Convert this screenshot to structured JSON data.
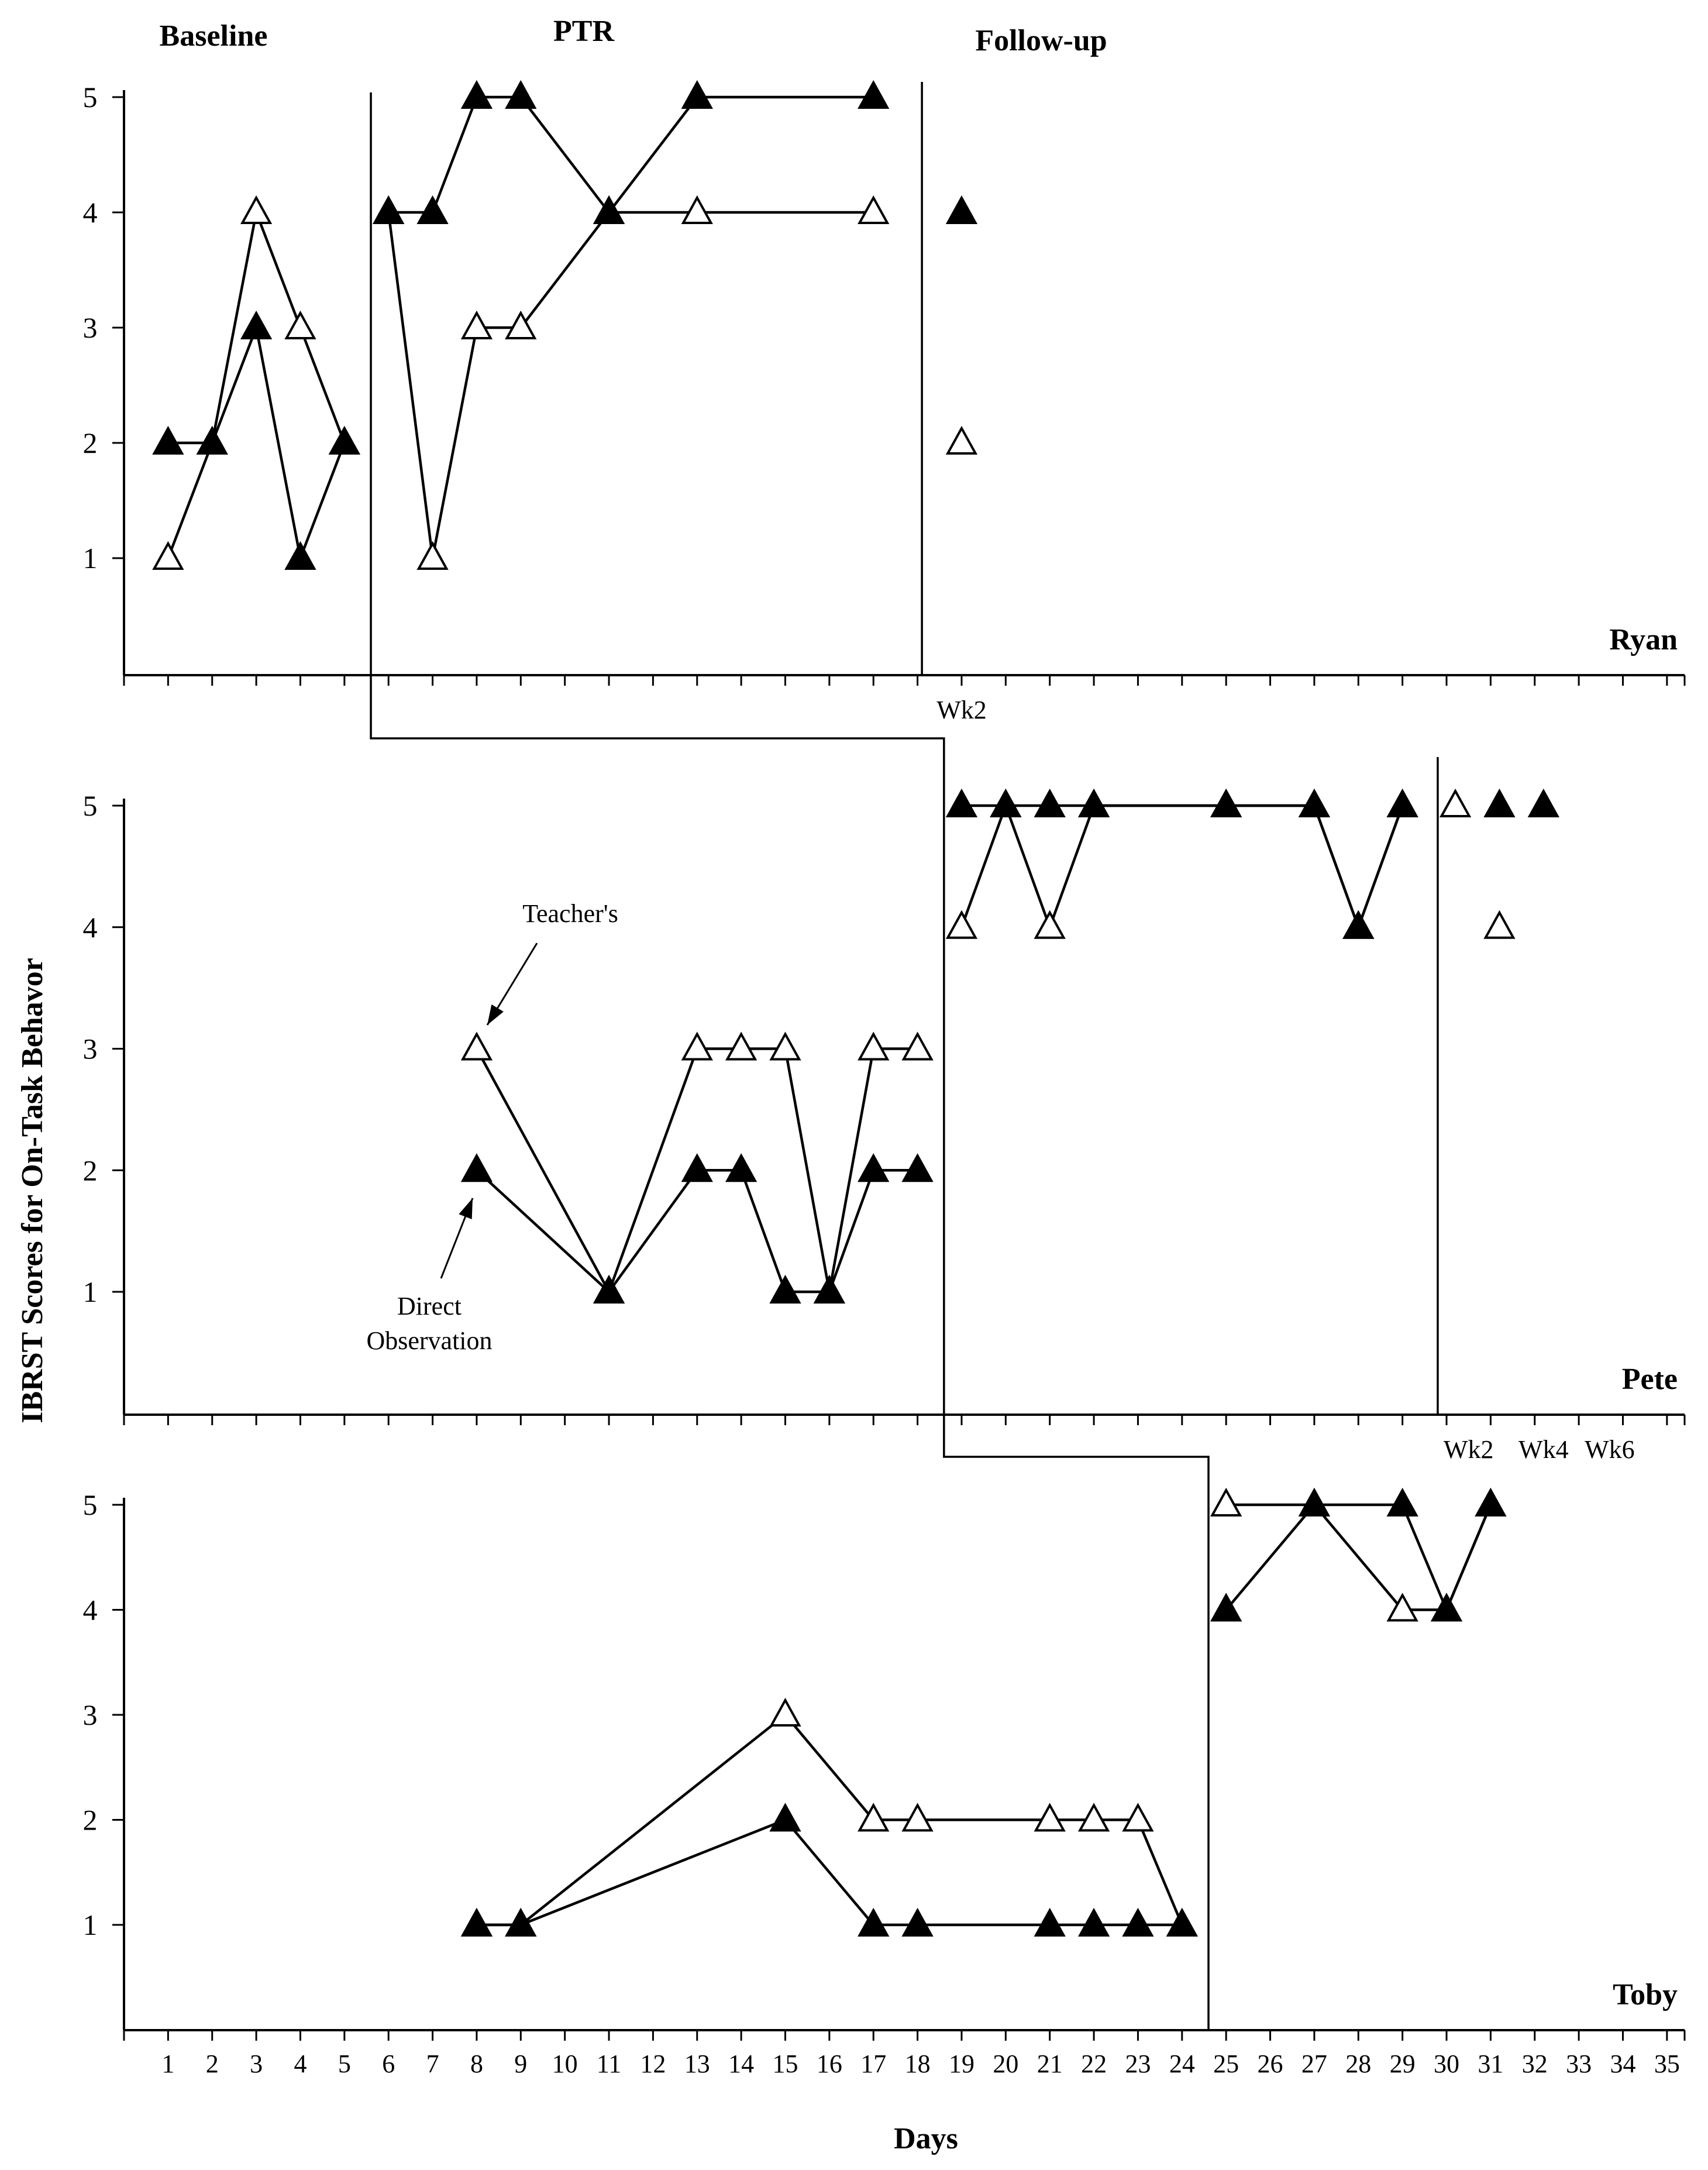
{
  "chart_data": {
    "type": "line",
    "y_axis_title": "IBRST Scores for On-Task Behavor",
    "x_axis_title": "Days",
    "phase_labels": [
      "Baseline",
      "PTR",
      "Follow-up"
    ],
    "x_ticks": [
      "1",
      "2",
      "3",
      "4",
      "5",
      "6",
      "7",
      "8",
      "9",
      "10",
      "11",
      "12",
      "13",
      "14",
      "15",
      "16",
      "17",
      "18",
      "19",
      "20",
      "21",
      "22",
      "23",
      "24",
      "25",
      "26",
      "27",
      "28",
      "29",
      "30",
      "31",
      "32",
      "33",
      "34",
      "35"
    ],
    "y_ticks": [
      "1",
      "2",
      "3",
      "4",
      "5"
    ],
    "xlim": [
      0,
      35.4
    ],
    "ylim": [
      0,
      5
    ],
    "annotations": {
      "teacher_label": "Teacher's",
      "direct_label_line1": "Direct",
      "direct_label_line2": "Observation"
    },
    "legend": [
      {
        "name": "Teacher's",
        "marker": "open-triangle"
      },
      {
        "name": "Direct Observation",
        "marker": "filled-triangle"
      }
    ],
    "phase_change_days": {
      "baseline_to_ptr": [
        5.6,
        18.6,
        24.6
      ],
      "ptr_to_followup": [
        18.1,
        29.8
      ]
    },
    "panels": [
      {
        "participant": "Ryan",
        "follow_up_labels": [
          {
            "text": "Wk2",
            "day": 19
          }
        ],
        "series": [
          {
            "name": "Teacher's",
            "marker": "open",
            "points": [
              [
                1,
                1
              ],
              [
                2,
                2
              ],
              [
                3,
                4
              ],
              [
                4,
                3
              ],
              [
                5,
                2
              ],
              [
                6,
                4
              ],
              [
                7,
                1
              ],
              [
                8,
                3
              ],
              [
                9,
                3
              ],
              [
                11,
                4
              ],
              [
                13,
                4
              ],
              [
                17,
                4
              ],
              [
                19,
                2
              ]
            ],
            "segments": [
              [
                1,
                2,
                3,
                4,
                5
              ],
              [
                6,
                7,
                8,
                9,
                11,
                13,
                17
              ],
              [
                19
              ]
            ]
          },
          {
            "name": "Direct Observation",
            "marker": "filled",
            "points": [
              [
                1,
                2
              ],
              [
                2,
                2
              ],
              [
                3,
                3
              ],
              [
                4,
                1
              ],
              [
                5,
                2
              ],
              [
                6,
                4
              ],
              [
                7,
                4
              ],
              [
                8,
                5
              ],
              [
                9,
                5
              ],
              [
                11,
                4
              ],
              [
                13,
                5
              ],
              [
                17,
                5
              ],
              [
                19,
                4
              ]
            ],
            "segments": [
              [
                1,
                2,
                3,
                4,
                5
              ],
              [
                6,
                7,
                8,
                9,
                11,
                13,
                17
              ],
              [
                19
              ]
            ]
          }
        ]
      },
      {
        "participant": "Pete",
        "follow_up_labels": [
          {
            "text": "Wk2",
            "day": 30.5
          },
          {
            "text": "Wk4",
            "day": 32.2
          },
          {
            "text": "Wk6",
            "day": 33.7
          }
        ],
        "series": [
          {
            "name": "Teacher's",
            "marker": "open",
            "points": [
              [
                8,
                3
              ],
              [
                11,
                1
              ],
              [
                13,
                3
              ],
              [
                14,
                3
              ],
              [
                15,
                3
              ],
              [
                16,
                1
              ],
              [
                17,
                3
              ],
              [
                18,
                3
              ],
              [
                19,
                4
              ],
              [
                20,
                5
              ],
              [
                21,
                4
              ],
              [
                22,
                5
              ],
              [
                25,
                5
              ],
              [
                27,
                5
              ],
              [
                28,
                4
              ],
              [
                29,
                5
              ],
              [
                30.2,
                5
              ],
              [
                31.2,
                4
              ]
            ],
            "segments": [
              [
                8,
                11,
                13,
                14,
                15,
                16,
                17,
                18
              ],
              [
                19,
                20,
                21,
                22,
                25,
                27,
                28,
                29
              ],
              [
                30.2
              ],
              [
                31.2
              ]
            ]
          },
          {
            "name": "Direct Observation",
            "marker": "filled",
            "points": [
              [
                8,
                2
              ],
              [
                11,
                1
              ],
              [
                13,
                2
              ],
              [
                14,
                2
              ],
              [
                15,
                1
              ],
              [
                16,
                1
              ],
              [
                17,
                2
              ],
              [
                18,
                2
              ],
              [
                19,
                5
              ],
              [
                20,
                5
              ],
              [
                21,
                5
              ],
              [
                22,
                5
              ],
              [
                25,
                5
              ],
              [
                27,
                5
              ],
              [
                28,
                4
              ],
              [
                29,
                5
              ],
              [
                31.2,
                5
              ],
              [
                32.2,
                5
              ]
            ],
            "segments": [
              [
                8,
                11,
                13,
                14,
                15,
                16,
                17,
                18
              ],
              [
                19,
                20,
                21,
                22,
                25,
                27,
                28,
                29
              ],
              [
                31.2
              ],
              [
                32.2
              ]
            ]
          }
        ]
      },
      {
        "participant": "Toby",
        "follow_up_labels": [],
        "series": [
          {
            "name": "Teacher's",
            "marker": "open",
            "points": [
              [
                8,
                1
              ],
              [
                9,
                1
              ],
              [
                15,
                3
              ],
              [
                17,
                2
              ],
              [
                18,
                2
              ],
              [
                21,
                2
              ],
              [
                22,
                2
              ],
              [
                23,
                2
              ],
              [
                24,
                1
              ],
              [
                25,
                5
              ],
              [
                27,
                5
              ],
              [
                29,
                4
              ],
              [
                30,
                4
              ],
              [
                31,
                5
              ]
            ],
            "segments": [
              [
                8,
                9,
                15,
                17,
                18,
                21,
                22,
                23,
                24
              ],
              [
                25,
                27,
                29,
                30,
                31
              ]
            ]
          },
          {
            "name": "Direct Observation",
            "marker": "filled",
            "points": [
              [
                8,
                1
              ],
              [
                9,
                1
              ],
              [
                15,
                2
              ],
              [
                17,
                1
              ],
              [
                18,
                1
              ],
              [
                21,
                1
              ],
              [
                22,
                1
              ],
              [
                23,
                1
              ],
              [
                24,
                1
              ],
              [
                25,
                4
              ],
              [
                27,
                5
              ],
              [
                29,
                5
              ],
              [
                30,
                4
              ],
              [
                31,
                5
              ]
            ],
            "segments": [
              [
                8,
                9,
                15,
                17,
                18,
                21,
                22,
                23,
                24
              ],
              [
                25,
                27,
                29,
                30,
                31
              ]
            ]
          }
        ]
      }
    ]
  }
}
